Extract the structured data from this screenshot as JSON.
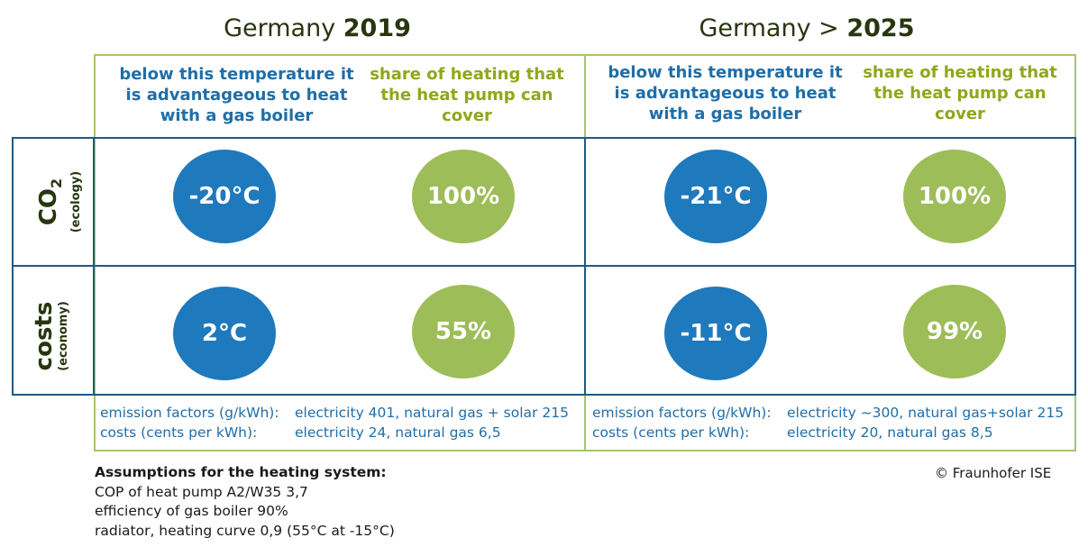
{
  "titles": {
    "left": {
      "prefix": "Germany ",
      "bold": "2019"
    },
    "right": {
      "prefix": "Germany > ",
      "bold": "2025"
    }
  },
  "headers": {
    "left_temp": "below this temperature it is advantageous to heat with a gas boiler",
    "left_share": "share of heating that the heat pump can cover",
    "right_temp": "below this temperature it is advantageous to heat with a gas boiler",
    "right_share": "share of heating that the heat pump can cover"
  },
  "rows": {
    "co2": {
      "main": "CO2",
      "main_base": "CO",
      "main_sub": "2",
      "sub": "(ecology)"
    },
    "costs": {
      "main": "costs",
      "sub": "(economy)"
    }
  },
  "values": {
    "co2": {
      "y2019_temp": "-20°C",
      "y2019_share": "100%",
      "y2025_temp": "-21°C",
      "y2025_share": "100%"
    },
    "costs": {
      "y2019_temp": "2°C",
      "y2019_share": "55%",
      "y2025_temp": "-11°C",
      "y2025_share": "99%"
    }
  },
  "footnotes": {
    "left": {
      "emission_label": "emission factors (g/kWh):",
      "emission_value": "electricity 401, natural gas + solar 215",
      "costs_label": "costs (cents per kWh):",
      "costs_value": "electricity 24, natural gas 6,5"
    },
    "right": {
      "emission_label": "emission factors (g/kWh):",
      "emission_value": "electricity ~300, natural gas+solar 215",
      "costs_label": "costs (cents per kWh):",
      "costs_value": "electricity 20, natural gas 8,5"
    }
  },
  "assumptions": {
    "heading": "Assumptions for the heating system:",
    "lines": [
      "COP of heat pump A2/W35 3,7",
      "efficiency of gas boiler 90%",
      "radiator, heating curve 0,9 (55°C at -15°C)"
    ]
  },
  "credit": "© Fraunhofer ISE",
  "colors": {
    "blue_circle": "#1f79bd",
    "green_circle": "#9dbd58",
    "blue_text": "#1f6ea8",
    "green_text": "#8ea81b",
    "frame_green": "#a8c46a",
    "frame_blue": "#1f5a85"
  }
}
